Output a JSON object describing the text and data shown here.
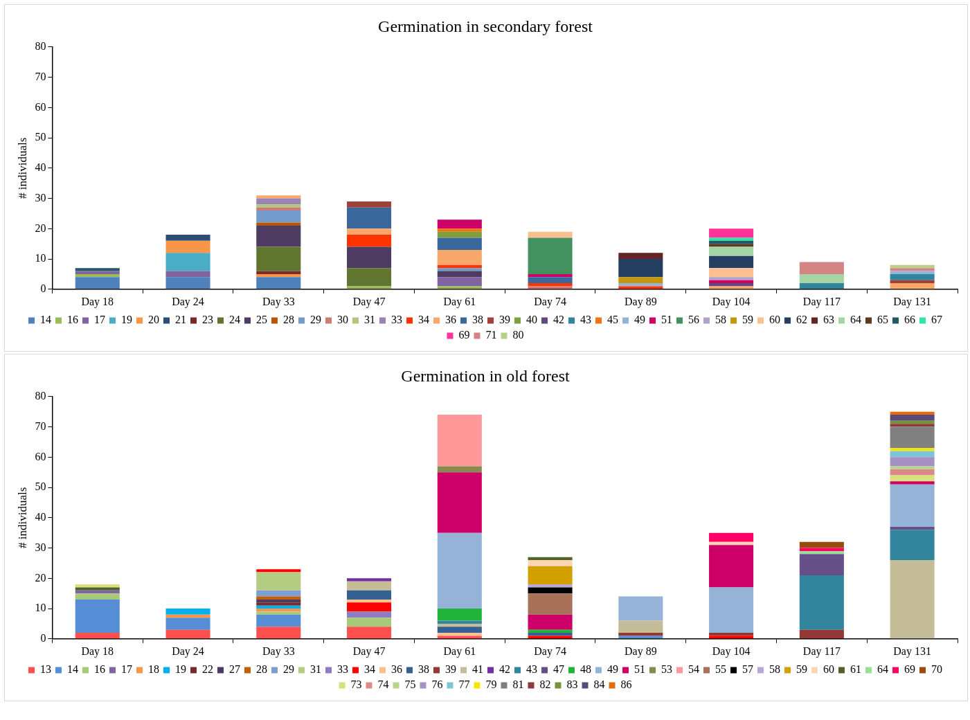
{
  "chart_data": [
    {
      "type": "bar",
      "title": "Germination in secondary forest",
      "ylabel": "# individuals",
      "stacked": true,
      "legend": "bottom",
      "grid": false,
      "ylim": [
        0,
        80
      ],
      "yticks": [
        0,
        10,
        20,
        30,
        40,
        50,
        60,
        70,
        80
      ],
      "categories": [
        "Day 18",
        "Day 24",
        "Day 33",
        "Day 47",
        "Day 61",
        "Day 74",
        "Day 89",
        "Day 104",
        "Day 117",
        "Day 131"
      ],
      "series": [
        {
          "name": "14",
          "color": "#4f81bd",
          "values": [
            4,
            4,
            4,
            null,
            null,
            null,
            null,
            null,
            null,
            null
          ]
        },
        {
          "name": "16",
          "color": "#9bbb59",
          "values": [
            1,
            null,
            null,
            1,
            1,
            null,
            null,
            null,
            null,
            null
          ]
        },
        {
          "name": "17",
          "color": "#8064a2",
          "values": [
            1,
            2,
            null,
            null,
            3,
            null,
            null,
            null,
            null,
            null
          ]
        },
        {
          "name": "19",
          "color": "#4bacc6",
          "values": [
            null,
            6,
            null,
            null,
            null,
            null,
            null,
            null,
            null,
            null
          ]
        },
        {
          "name": "20",
          "color": "#f79646",
          "values": [
            null,
            4,
            1,
            null,
            null,
            null,
            null,
            null,
            null,
            null
          ]
        },
        {
          "name": "21",
          "color": "#2c4d75",
          "values": [
            null,
            2,
            null,
            null,
            null,
            null,
            null,
            null,
            null,
            null
          ]
        },
        {
          "name": "23",
          "color": "#772c2a",
          "values": [
            null,
            null,
            1,
            null,
            null,
            null,
            null,
            null,
            null,
            null
          ]
        },
        {
          "name": "24",
          "color": "#5f7530",
          "values": [
            null,
            null,
            8,
            6,
            null,
            null,
            null,
            null,
            null,
            null
          ]
        },
        {
          "name": "25",
          "color": "#4d3b62",
          "values": [
            null,
            null,
            7,
            7,
            2,
            null,
            null,
            null,
            null,
            null
          ]
        },
        {
          "name": "28",
          "color": "#b65708",
          "values": [
            null,
            null,
            1,
            null,
            null,
            null,
            null,
            null,
            null,
            null
          ]
        },
        {
          "name": "29",
          "color": "#729aca",
          "values": [
            null,
            null,
            4,
            null,
            1,
            null,
            null,
            null,
            null,
            null
          ]
        },
        {
          "name": "30",
          "color": "#d07a76",
          "values": [
            null,
            null,
            1,
            null,
            null,
            1,
            null,
            null,
            null,
            null
          ]
        },
        {
          "name": "31",
          "color": "#afc97a",
          "values": [
            null,
            null,
            1,
            null,
            null,
            null,
            null,
            null,
            null,
            null
          ]
        },
        {
          "name": "33",
          "color": "#9983b5",
          "values": [
            null,
            null,
            2,
            null,
            null,
            null,
            null,
            null,
            null,
            null
          ]
        },
        {
          "name": "34",
          "color": "#ff3300",
          "values": [
            null,
            null,
            null,
            4,
            1,
            1,
            1,
            null,
            null,
            null
          ]
        },
        {
          "name": "36",
          "color": "#f9a86b",
          "values": [
            null,
            null,
            1,
            2,
            5,
            null,
            null,
            1,
            null,
            2
          ]
        },
        {
          "name": "38",
          "color": "#3a679c",
          "values": [
            null,
            null,
            null,
            7,
            4,
            2,
            null,
            null,
            null,
            null
          ]
        },
        {
          "name": "39",
          "color": "#a0403a",
          "values": [
            null,
            null,
            null,
            2,
            null,
            null,
            null,
            null,
            null,
            1
          ]
        },
        {
          "name": "40",
          "color": "#7f9f3f",
          "values": [
            null,
            null,
            null,
            null,
            2,
            null,
            null,
            null,
            null,
            null
          ]
        },
        {
          "name": "42",
          "color": "#604a7b",
          "values": [
            null,
            null,
            null,
            null,
            null,
            null,
            null,
            1,
            null,
            null
          ]
        },
        {
          "name": "43",
          "color": "#31859c",
          "values": [
            null,
            null,
            null,
            null,
            null,
            null,
            null,
            null,
            2,
            2
          ]
        },
        {
          "name": "45",
          "color": "#f47216",
          "values": [
            null,
            null,
            null,
            null,
            1,
            null,
            null,
            null,
            null,
            null
          ]
        },
        {
          "name": "49",
          "color": "#95b3d7",
          "values": [
            null,
            null,
            null,
            null,
            null,
            null,
            1,
            null,
            null,
            1
          ]
        },
        {
          "name": "51",
          "color": "#cc0066",
          "values": [
            null,
            null,
            null,
            null,
            3,
            1,
            null,
            1,
            null,
            null
          ]
        },
        {
          "name": "56",
          "color": "#43915f",
          "values": [
            null,
            null,
            null,
            null,
            null,
            12,
            null,
            null,
            null,
            null
          ]
        },
        {
          "name": "58",
          "color": "#b3a2c7",
          "values": [
            null,
            null,
            null,
            null,
            null,
            null,
            null,
            1,
            null,
            null
          ]
        },
        {
          "name": "59",
          "color": "#c4960e",
          "values": [
            null,
            null,
            null,
            null,
            null,
            null,
            2,
            null,
            null,
            null
          ]
        },
        {
          "name": "60",
          "color": "#fac090",
          "values": [
            null,
            null,
            null,
            null,
            null,
            2,
            null,
            3,
            null,
            null
          ]
        },
        {
          "name": "62",
          "color": "#243f60",
          "values": [
            null,
            null,
            null,
            null,
            null,
            null,
            6,
            4,
            null,
            null
          ]
        },
        {
          "name": "63",
          "color": "#632523",
          "values": [
            null,
            null,
            null,
            null,
            null,
            null,
            2,
            null,
            null,
            null
          ]
        },
        {
          "name": "64",
          "color": "#a5d4a5",
          "values": [
            null,
            null,
            null,
            null,
            null,
            null,
            null,
            3,
            3,
            null
          ]
        },
        {
          "name": "65",
          "color": "#5a3a1c",
          "values": [
            null,
            null,
            null,
            null,
            null,
            null,
            null,
            1,
            null,
            null
          ]
        },
        {
          "name": "66",
          "color": "#215968",
          "values": [
            1,
            null,
            null,
            null,
            null,
            null,
            null,
            1,
            null,
            null
          ]
        },
        {
          "name": "67",
          "color": "#2ee6a0",
          "values": [
            null,
            null,
            null,
            null,
            null,
            null,
            null,
            1,
            null,
            null
          ]
        },
        {
          "name": "69",
          "color": "#ff3399",
          "values": [
            null,
            null,
            null,
            null,
            null,
            null,
            null,
            3,
            null,
            null
          ]
        },
        {
          "name": "71",
          "color": "#d48484",
          "values": [
            null,
            null,
            null,
            null,
            null,
            null,
            null,
            null,
            4,
            1
          ]
        },
        {
          "name": "80",
          "color": "#b8d08a",
          "values": [
            null,
            null,
            null,
            null,
            null,
            null,
            null,
            null,
            null,
            1
          ]
        }
      ]
    },
    {
      "type": "bar",
      "title": "Germination in old forest",
      "ylabel": "# individuals",
      "stacked": true,
      "legend": "bottom",
      "grid": false,
      "ylim": [
        0,
        80
      ],
      "yticks": [
        0,
        10,
        20,
        30,
        40,
        50,
        60,
        70,
        80
      ],
      "categories": [
        "Day 18",
        "Day 24",
        "Day 33",
        "Day 47",
        "Day 61",
        "Day 74",
        "Day 89",
        "Day 104",
        "Day 117",
        "Day 131"
      ],
      "series": [
        {
          "name": "13",
          "color": "#ff5050",
          "values": [
            2,
            3,
            4,
            4,
            1,
            null,
            null,
            null,
            null,
            null
          ]
        },
        {
          "name": "14",
          "color": "#558ed5",
          "values": [
            11,
            4,
            4,
            null,
            null,
            null,
            1,
            null,
            null,
            null
          ]
        },
        {
          "name": "16",
          "color": "#a9c97a",
          "values": [
            2,
            null,
            1,
            3,
            null,
            null,
            null,
            null,
            null,
            null
          ]
        },
        {
          "name": "17",
          "color": "#8064a2",
          "values": [
            1,
            null,
            null,
            null,
            null,
            null,
            null,
            null,
            null,
            null
          ]
        },
        {
          "name": "18",
          "color": "#f79646",
          "values": [
            null,
            1,
            1,
            null,
            null,
            null,
            null,
            null,
            null,
            null
          ]
        },
        {
          "name": "19",
          "color": "#00b0f0",
          "values": [
            null,
            2,
            1,
            null,
            null,
            null,
            null,
            null,
            null,
            null
          ]
        },
        {
          "name": "22",
          "color": "#772c2a",
          "values": [
            null,
            null,
            1,
            null,
            null,
            null,
            null,
            null,
            null,
            null
          ]
        },
        {
          "name": "27",
          "color": "#4d3b62",
          "values": [
            null,
            null,
            1,
            null,
            null,
            null,
            null,
            null,
            null,
            null
          ]
        },
        {
          "name": "28",
          "color": "#c0600a",
          "values": [
            null,
            null,
            1,
            null,
            null,
            null,
            null,
            null,
            null,
            null
          ]
        },
        {
          "name": "29",
          "color": "#7ba0d0",
          "values": [
            null,
            null,
            2,
            null,
            null,
            null,
            null,
            null,
            null,
            null
          ]
        },
        {
          "name": "31",
          "color": "#b3cc82",
          "values": [
            null,
            null,
            6,
            null,
            null,
            null,
            null,
            null,
            null,
            null
          ]
        },
        {
          "name": "33",
          "color": "#8e7cc3",
          "values": [
            null,
            null,
            null,
            2,
            null,
            null,
            null,
            null,
            null,
            null
          ]
        },
        {
          "name": "34",
          "color": "#ff0000",
          "values": [
            null,
            null,
            1,
            3,
            null,
            1,
            null,
            1,
            null,
            null
          ]
        },
        {
          "name": "36",
          "color": "#fac08f",
          "values": [
            null,
            null,
            null,
            1,
            1,
            null,
            null,
            null,
            null,
            null
          ]
        },
        {
          "name": "38",
          "color": "#366092",
          "values": [
            null,
            null,
            null,
            3,
            2,
            1,
            null,
            null,
            null,
            null
          ]
        },
        {
          "name": "39",
          "color": "#953735",
          "values": [
            null,
            null,
            null,
            null,
            null,
            null,
            1,
            1,
            3,
            null
          ]
        },
        {
          "name": "41",
          "color": "#c4bd97",
          "values": [
            null,
            null,
            null,
            3,
            1,
            null,
            4,
            null,
            null,
            26
          ]
        },
        {
          "name": "42",
          "color": "#7030a0",
          "values": [
            null,
            null,
            null,
            1,
            null,
            null,
            null,
            null,
            null,
            null
          ]
        },
        {
          "name": "43",
          "color": "#31859c",
          "values": [
            null,
            null,
            null,
            null,
            1,
            null,
            null,
            null,
            18,
            10
          ]
        },
        {
          "name": "47",
          "color": "#675087",
          "values": [
            null,
            null,
            null,
            null,
            null,
            null,
            null,
            null,
            7,
            1
          ]
        },
        {
          "name": "48",
          "color": "#22b33a",
          "values": [
            null,
            null,
            null,
            null,
            4,
            1,
            null,
            null,
            null,
            null
          ]
        },
        {
          "name": "49",
          "color": "#95b3d7",
          "values": [
            null,
            null,
            null,
            null,
            25,
            null,
            8,
            15,
            null,
            14
          ]
        },
        {
          "name": "51",
          "color": "#cc0066",
          "values": [
            null,
            null,
            null,
            null,
            20,
            5,
            null,
            14,
            null,
            1
          ]
        },
        {
          "name": "53",
          "color": "#868a4d",
          "values": [
            null,
            null,
            null,
            null,
            2,
            null,
            null,
            null,
            null,
            null
          ]
        },
        {
          "name": "54",
          "color": "#ff9999",
          "values": [
            null,
            null,
            null,
            null,
            17,
            null,
            null,
            null,
            null,
            null
          ]
        },
        {
          "name": "55",
          "color": "#a9705a",
          "values": [
            null,
            null,
            null,
            null,
            null,
            7,
            null,
            null,
            null,
            null
          ]
        },
        {
          "name": "57",
          "color": "#000000",
          "values": [
            null,
            null,
            null,
            null,
            null,
            2,
            null,
            null,
            null,
            null
          ]
        },
        {
          "name": "58",
          "color": "#b9a8d3",
          "values": [
            null,
            null,
            null,
            null,
            null,
            1,
            null,
            null,
            null,
            null
          ]
        },
        {
          "name": "59",
          "color": "#d4a000",
          "values": [
            null,
            null,
            null,
            null,
            null,
            6,
            null,
            null,
            null,
            null
          ]
        },
        {
          "name": "60",
          "color": "#fcd5b5",
          "values": [
            null,
            null,
            null,
            null,
            null,
            2,
            null,
            1,
            null,
            null
          ]
        },
        {
          "name": "61",
          "color": "#4f6228",
          "values": [
            1,
            null,
            null,
            null,
            null,
            1,
            null,
            null,
            null,
            null
          ]
        },
        {
          "name": "64",
          "color": "#99dd99",
          "values": [
            null,
            null,
            null,
            null,
            null,
            null,
            null,
            null,
            1,
            null
          ]
        },
        {
          "name": "69",
          "color": "#ff0066",
          "values": [
            null,
            null,
            null,
            null,
            null,
            null,
            null,
            3,
            1,
            null
          ]
        },
        {
          "name": "70",
          "color": "#994c0e",
          "values": [
            null,
            null,
            null,
            null,
            null,
            null,
            null,
            null,
            2,
            null
          ]
        },
        {
          "name": "73",
          "color": "#d7e07a",
          "values": [
            1,
            null,
            null,
            null,
            null,
            null,
            null,
            null,
            null,
            2
          ]
        },
        {
          "name": "74",
          "color": "#da8a88",
          "values": [
            null,
            null,
            null,
            null,
            null,
            null,
            null,
            null,
            null,
            2
          ]
        },
        {
          "name": "75",
          "color": "#b8d48a",
          "values": [
            null,
            null,
            null,
            null,
            null,
            null,
            null,
            null,
            null,
            1
          ]
        },
        {
          "name": "76",
          "color": "#a592c2",
          "values": [
            null,
            null,
            null,
            null,
            null,
            null,
            null,
            null,
            null,
            3
          ]
        },
        {
          "name": "77",
          "color": "#7ec4d8",
          "values": [
            null,
            null,
            null,
            null,
            null,
            null,
            null,
            null,
            null,
            2
          ]
        },
        {
          "name": "79",
          "color": "#f5e600",
          "values": [
            null,
            null,
            null,
            null,
            null,
            null,
            null,
            null,
            null,
            1
          ]
        },
        {
          "name": "81",
          "color": "#808080",
          "values": [
            null,
            null,
            null,
            null,
            null,
            null,
            null,
            null,
            null,
            7
          ]
        },
        {
          "name": "82",
          "color": "#8c3a3a",
          "values": [
            null,
            null,
            null,
            null,
            null,
            null,
            null,
            null,
            null,
            1
          ]
        },
        {
          "name": "83",
          "color": "#77933c",
          "values": [
            null,
            null,
            null,
            null,
            null,
            null,
            null,
            null,
            null,
            1
          ]
        },
        {
          "name": "84",
          "color": "#5a4a7a",
          "values": [
            null,
            null,
            null,
            null,
            null,
            null,
            null,
            null,
            null,
            2
          ]
        },
        {
          "name": "86",
          "color": "#e46c0a",
          "values": [
            null,
            null,
            null,
            null,
            null,
            null,
            null,
            null,
            null,
            1
          ]
        }
      ]
    }
  ]
}
